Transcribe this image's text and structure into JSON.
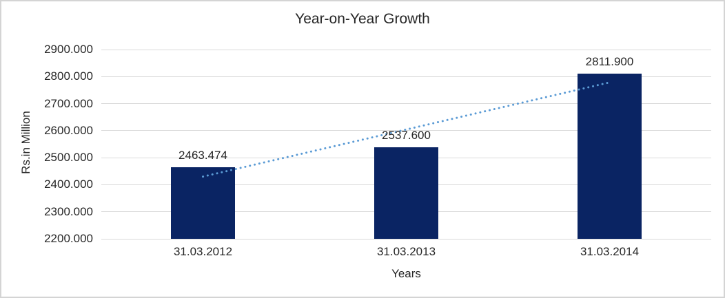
{
  "chart_data": {
    "type": "bar",
    "title": "Year-on-Year Growth",
    "categories": [
      "31.03.2012",
      "31.03.2013",
      "31.03.2014"
    ],
    "values": [
      2463.474,
      2537.6,
      2811.9
    ],
    "data_labels": [
      "2463.474",
      "2537.600",
      "2811.900"
    ],
    "xlabel": "Years",
    "ylabel": "Rs.in Million",
    "ylim": [
      2200,
      2900
    ],
    "ytick_step": 100,
    "yticks": [
      "2200.000",
      "2300.000",
      "2400.000",
      "2500.000",
      "2600.000",
      "2700.000",
      "2800.000",
      "2900.000"
    ],
    "grid": "horizontal",
    "legend": "none",
    "trendline": {
      "type": "linear",
      "style": "dotted",
      "endpoints": [
        2430.1,
        2778.5
      ]
    },
    "colors": {
      "bar": "#0A2463",
      "trendline": "#5B9BD5",
      "gridline": "#D9D9D9",
      "text": "#262626",
      "border": "#D4D4D4",
      "background": "#FFFFFF"
    }
  }
}
